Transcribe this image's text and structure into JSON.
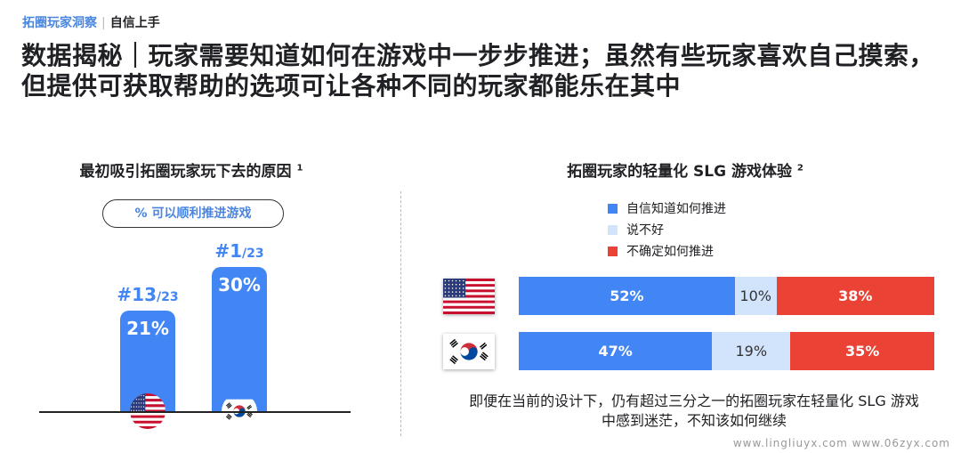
{
  "header": {
    "section": "拓圈玩家洞察",
    "subsection": "自信上手"
  },
  "title": "数据揭秘｜玩家需要知道如何在游戏中一步步推进；虽然有些玩家喜欢自己摸索，但提供可获取帮助的选项可让各种不同的玩家都能乐在其中",
  "colors": {
    "blue": "#4285f4",
    "light": "#d2e3fc",
    "red": "#ea4335"
  },
  "chart_data": [
    {
      "type": "bar",
      "title": "最初吸引拓圈玩家玩下去的原因",
      "footnote": "1",
      "subtitle": "% 可以顺利推进游戏",
      "categories": [
        "US",
        "KR"
      ],
      "values": [
        21,
        30
      ],
      "labels": [
        "21%",
        "30%"
      ],
      "ranks": [
        {
          "rank": "#13",
          "total": "/23"
        },
        {
          "rank": "#1",
          "total": "/23"
        }
      ],
      "ylim": [
        0,
        30
      ]
    },
    {
      "type": "bar",
      "stacked": true,
      "orientation": "horizontal",
      "title": "拓圈玩家的轻量化 SLG 游戏体验",
      "footnote": "2",
      "categories": [
        "US",
        "KR"
      ],
      "series": [
        {
          "name": "自信知道如何推进",
          "values": [
            52,
            47
          ],
          "color": "#4285f4"
        },
        {
          "name": "说不好",
          "values": [
            10,
            19
          ],
          "color": "#d2e3fc"
        },
        {
          "name": "不确定如何推进",
          "values": [
            38,
            35
          ],
          "color": "#ea4335"
        }
      ],
      "legend": "top"
    }
  ],
  "note": "即便在当前的设计下，仍有超过三分之一的拓圈玩家在轻量化 SLG 游戏中感到迷茫，不知该如何继续",
  "watermark": "www.lingliuyx.com  www.06zyx.com"
}
